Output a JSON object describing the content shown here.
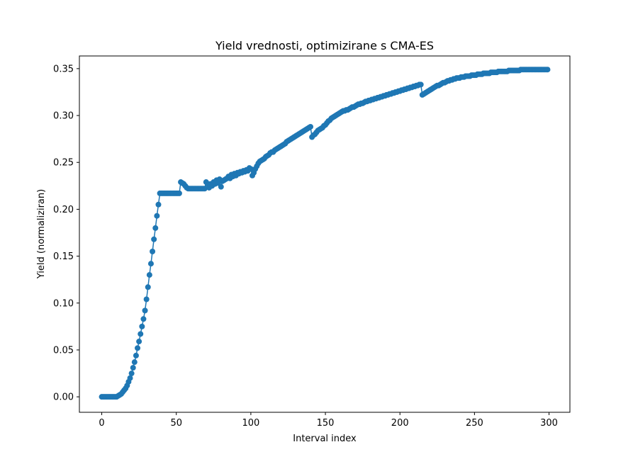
{
  "chart_data": {
    "type": "line",
    "title": "Yield vrednosti, optimizirane s CMA-ES",
    "xlabel": "Interval index",
    "ylabel": "Yield (normaliziran)",
    "xlim": [
      -15,
      314
    ],
    "ylim": [
      -0.0165,
      0.3635
    ],
    "xticks": [
      0,
      50,
      100,
      150,
      200,
      250,
      300
    ],
    "xtick_labels": [
      "0",
      "50",
      "100",
      "150",
      "200",
      "250",
      "300"
    ],
    "yticks": [
      0.0,
      0.05,
      0.1,
      0.15,
      0.2,
      0.25,
      0.3,
      0.35
    ],
    "ytick_labels": [
      "0.00",
      "0.05",
      "0.10",
      "0.15",
      "0.20",
      "0.25",
      "0.30",
      "0.35"
    ],
    "grid": false,
    "markers": true,
    "series": [
      {
        "color": "#1f77b4",
        "x": [
          0,
          1,
          2,
          3,
          4,
          5,
          6,
          7,
          8,
          9,
          10,
          11,
          12,
          13,
          14,
          15,
          16,
          17,
          18,
          19,
          20,
          21,
          22,
          23,
          24,
          25,
          26,
          27,
          28,
          29,
          30,
          31,
          32,
          33,
          34,
          35,
          36,
          37,
          38,
          39,
          40,
          41,
          42,
          43,
          44,
          45,
          46,
          47,
          48,
          49,
          50,
          51,
          52,
          53,
          54,
          55,
          56,
          57,
          58,
          59,
          60,
          61,
          62,
          63,
          64,
          65,
          66,
          67,
          68,
          69,
          70,
          71,
          72,
          73,
          74,
          75,
          76,
          77,
          78,
          79,
          80,
          81,
          82,
          83,
          84,
          85,
          86,
          87,
          88,
          89,
          90,
          91,
          92,
          93,
          94,
          95,
          96,
          97,
          98,
          99,
          100,
          101,
          102,
          103,
          104,
          105,
          106,
          107,
          108,
          109,
          110,
          111,
          112,
          113,
          114,
          115,
          116,
          117,
          118,
          119,
          120,
          121,
          122,
          123,
          124,
          125,
          126,
          127,
          128,
          129,
          130,
          131,
          132,
          133,
          134,
          135,
          136,
          137,
          138,
          139,
          140,
          141,
          142,
          143,
          144,
          145,
          146,
          147,
          148,
          149,
          150,
          151,
          152,
          153,
          154,
          155,
          156,
          157,
          158,
          159,
          160,
          161,
          162,
          163,
          164,
          165,
          166,
          167,
          168,
          169,
          170,
          171,
          172,
          173,
          174,
          175,
          176,
          177,
          178,
          179,
          180,
          181,
          182,
          183,
          184,
          185,
          186,
          187,
          188,
          189,
          190,
          191,
          192,
          193,
          194,
          195,
          196,
          197,
          198,
          199,
          200,
          201,
          202,
          203,
          204,
          205,
          206,
          207,
          208,
          209,
          210,
          211,
          212,
          213,
          214,
          215,
          216,
          217,
          218,
          219,
          220,
          221,
          222,
          223,
          224,
          225,
          226,
          227,
          228,
          229,
          230,
          231,
          232,
          233,
          234,
          235,
          236,
          237,
          238,
          239,
          240,
          241,
          242,
          243,
          244,
          245,
          246,
          247,
          248,
          249,
          250,
          251,
          252,
          253,
          254,
          255,
          256,
          257,
          258,
          259,
          260,
          261,
          262,
          263,
          264,
          265,
          266,
          267,
          268,
          269,
          270,
          271,
          272,
          273,
          274,
          275,
          276,
          277,
          278,
          279,
          280,
          281,
          282,
          283,
          284,
          285,
          286,
          287,
          288,
          289,
          290,
          291,
          292,
          293,
          294,
          295,
          296,
          297,
          298,
          299
        ],
        "y": [
          0.0,
          0.0,
          0.0,
          0.0,
          0.0,
          0.0,
          0.0,
          0.0,
          0.0,
          0.0,
          0.0,
          0.001,
          0.002,
          0.003,
          0.005,
          0.007,
          0.009,
          0.012,
          0.016,
          0.02,
          0.025,
          0.031,
          0.037,
          0.044,
          0.052,
          0.059,
          0.067,
          0.075,
          0.083,
          0.092,
          0.104,
          0.117,
          0.13,
          0.142,
          0.155,
          0.168,
          0.18,
          0.193,
          0.205,
          0.217,
          0.217,
          0.217,
          0.217,
          0.217,
          0.217,
          0.217,
          0.217,
          0.217,
          0.217,
          0.217,
          0.217,
          0.217,
          0.217,
          0.229,
          0.228,
          0.227,
          0.225,
          0.223,
          0.222,
          0.222,
          0.222,
          0.222,
          0.222,
          0.222,
          0.222,
          0.222,
          0.222,
          0.222,
          0.222,
          0.222,
          0.229,
          0.227,
          0.223,
          0.227,
          0.225,
          0.229,
          0.227,
          0.231,
          0.228,
          0.232,
          0.224,
          0.23,
          0.231,
          0.232,
          0.233,
          0.235,
          0.233,
          0.237,
          0.235,
          0.238,
          0.236,
          0.239,
          0.238,
          0.24,
          0.239,
          0.241,
          0.24,
          0.242,
          0.241,
          0.244,
          0.243,
          0.236,
          0.239,
          0.243,
          0.246,
          0.249,
          0.251,
          0.252,
          0.253,
          0.254,
          0.256,
          0.257,
          0.258,
          0.26,
          0.261,
          0.261,
          0.263,
          0.264,
          0.265,
          0.266,
          0.267,
          0.268,
          0.269,
          0.27,
          0.272,
          0.273,
          0.274,
          0.275,
          0.276,
          0.277,
          0.278,
          0.279,
          0.28,
          0.281,
          0.282,
          0.283,
          0.284,
          0.285,
          0.286,
          0.287,
          0.288,
          0.277,
          0.279,
          0.28,
          0.282,
          0.284,
          0.285,
          0.286,
          0.287,
          0.289,
          0.29,
          0.292,
          0.294,
          0.295,
          0.297,
          0.298,
          0.299,
          0.3,
          0.301,
          0.302,
          0.303,
          0.304,
          0.305,
          0.305,
          0.306,
          0.306,
          0.307,
          0.308,
          0.309,
          0.309,
          0.31,
          0.311,
          0.312,
          0.312,
          0.313,
          0.313,
          0.314,
          0.315,
          0.315,
          0.316,
          0.316,
          0.317,
          0.317,
          0.318,
          0.318,
          0.319,
          0.319,
          0.32,
          0.32,
          0.321,
          0.321,
          0.322,
          0.322,
          0.323,
          0.323,
          0.324,
          0.324,
          0.325,
          0.325,
          0.326,
          0.326,
          0.327,
          0.327,
          0.328,
          0.328,
          0.329,
          0.329,
          0.33,
          0.33,
          0.331,
          0.331,
          0.332,
          0.332,
          0.333,
          0.333,
          0.322,
          0.323,
          0.324,
          0.325,
          0.326,
          0.327,
          0.328,
          0.329,
          0.33,
          0.331,
          0.332,
          0.332,
          0.333,
          0.334,
          0.335,
          0.335,
          0.336,
          0.337,
          0.337,
          0.338,
          0.338,
          0.339,
          0.339,
          0.34,
          0.34,
          0.34,
          0.341,
          0.341,
          0.341,
          0.342,
          0.342,
          0.342,
          0.342,
          0.343,
          0.343,
          0.343,
          0.343,
          0.344,
          0.344,
          0.344,
          0.344,
          0.345,
          0.345,
          0.345,
          0.345,
          0.345,
          0.346,
          0.346,
          0.346,
          0.346,
          0.346,
          0.347,
          0.347,
          0.347,
          0.347,
          0.347,
          0.347,
          0.347,
          0.348,
          0.348,
          0.348,
          0.348,
          0.348,
          0.348,
          0.348,
          0.348,
          0.349,
          0.349,
          0.349,
          0.349,
          0.349,
          0.349,
          0.349,
          0.349,
          0.349,
          0.349,
          0.349,
          0.349,
          0.349,
          0.349,
          0.349,
          0.349,
          0.349,
          0.349,
          0.349
        ]
      }
    ]
  }
}
